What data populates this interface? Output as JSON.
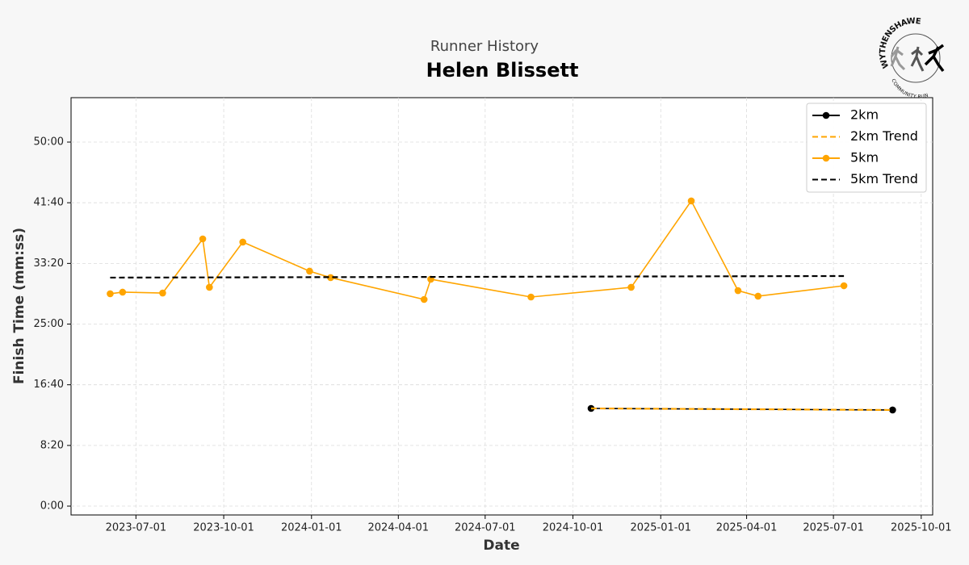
{
  "logo": {
    "top_text": "WYTHENSHAWE",
    "bottom_text": "COMMUNITY RUN"
  },
  "chart_data": {
    "type": "line",
    "subtitle": "Runner History",
    "title": "Helen Blissett",
    "x_label": "Date",
    "y_label": "Finish Time (mm:ss)",
    "xlim": [
      "2023-04-24",
      "2025-10-13"
    ],
    "xticks": [
      "2023-07-01",
      "2023-10-01",
      "2024-01-01",
      "2024-04-01",
      "2024-07-01",
      "2024-10-01",
      "2025-01-01",
      "2025-04-01",
      "2025-07-01",
      "2025-10-01"
    ],
    "ylim": [
      -73,
      3366
    ],
    "yticks": [
      {
        "value": 0,
        "label": "0:00"
      },
      {
        "value": 500,
        "label": "8:20"
      },
      {
        "value": 1000,
        "label": "16:40"
      },
      {
        "value": 1500,
        "label": "25:00"
      },
      {
        "value": 2000,
        "label": "33:20"
      },
      {
        "value": 2500,
        "label": "41:40"
      },
      {
        "value": 3000,
        "label": "50:00"
      }
    ],
    "grid": true,
    "legend": "upper right",
    "series": [
      {
        "name": "2km",
        "color": "#000000",
        "style": "solid",
        "markers": true,
        "x": [
          "2024-10-20",
          "2025-09-01"
        ],
        "values": [
          805,
          792
        ]
      },
      {
        "name": "2km Trend",
        "color": "#ffa500",
        "style": "dashed",
        "markers": false,
        "x": [
          "2024-10-20",
          "2025-09-01"
        ],
        "values": [
          805,
          792
        ]
      },
      {
        "name": "5km",
        "color": "#ffa500",
        "style": "solid",
        "markers": true,
        "x": [
          "2023-06-04",
          "2023-06-17",
          "2023-07-29",
          "2023-09-09",
          "2023-09-16",
          "2023-10-21",
          "2023-12-30",
          "2024-01-21",
          "2024-04-28",
          "2024-05-05",
          "2024-08-18",
          "2024-12-01",
          "2025-02-02",
          "2025-03-23",
          "2025-04-13",
          "2025-07-12"
        ],
        "values": [
          1750,
          1763,
          1756,
          2202,
          1803,
          2176,
          1936,
          1883,
          1703,
          1870,
          1723,
          1803,
          2515,
          1776,
          1730,
          1816
        ]
      },
      {
        "name": "5km Trend",
        "color": "#000000",
        "style": "dashed",
        "markers": false,
        "x": [
          "2023-06-04",
          "2025-07-12"
        ],
        "values": [
          1883,
          1896
        ]
      }
    ]
  }
}
